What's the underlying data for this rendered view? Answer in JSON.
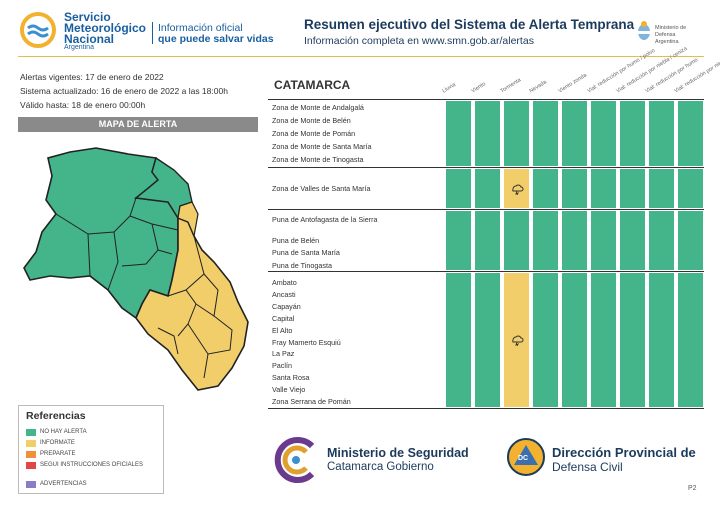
{
  "header": {
    "org_line1": "Servicio",
    "org_line2": "Meteorológico",
    "org_line3": "Nacional",
    "org_country": "Argentina",
    "slogan_line1": "Información oficial",
    "slogan_line2": "que puede salvar vidas",
    "title": "Resumen ejecutivo del Sistema de Alerta Temprana",
    "subtitle": "Información completa en www.smn.gob.ar/alertas",
    "ministry_line1": "Ministerio de Defensa",
    "ministry_line2": "Argentina"
  },
  "info": {
    "vigentes": "Alertas vigentes: 17 de enero de 2022",
    "actualizado": "Sistema actualizado: 16 de enero de 2022 a las 18:00h",
    "valido": "Válido hasta: 18 de enero 00:00h"
  },
  "map": {
    "title": "MAPA DE ALERTA"
  },
  "references": {
    "title": "Referencias",
    "items": [
      {
        "label": "NO HAY ALERTA",
        "color": "#44b48a"
      },
      {
        "label": "INFORMATE",
        "color": "#f2ce6b"
      },
      {
        "label": "PREPARATE",
        "color": "#f0903a"
      },
      {
        "label": "SEGUI INSTRUCCIONES OFICIALES",
        "color": "#e04848"
      },
      {
        "label": "ADVERTENCIAS",
        "color": "#8c7cc8"
      }
    ]
  },
  "table": {
    "province": "CATAMARCA",
    "columns": [
      "Lluvia",
      "Viento",
      "Tormenta",
      "Nevada",
      "Viento zonda",
      "Vial: reducción por humo / polvo",
      "Vial: reducción por niebla / ceniza",
      "Vial: reducción por humo",
      "Vial: reducción por niebla"
    ],
    "groups": [
      {
        "zones": [
          "Zona de Monte de Andalgalá",
          "Zona de Monte de Belén",
          "Zona de Monte de Pomán",
          "Zona de Monte de Santa María",
          "Zona de Monte de Tinogasta"
        ],
        "tormenta": "sin alerta"
      },
      {
        "zones": [
          "Zona de Valles de Santa María"
        ],
        "tormenta": "informate"
      },
      {
        "zones": [
          "Puna de Antofagasta de la Sierra",
          "Puna de Belén",
          "Puna de Santa María",
          "Puna de Tinogasta"
        ],
        "tormenta": "sin alerta"
      },
      {
        "zones": [
          "Ambato",
          "Ancasti",
          "Capayán",
          "Capital",
          "El Alto",
          "Fray Mamerto Esquiú",
          "La Paz",
          "Paclín",
          "Santa Rosa",
          "Valle Viejo",
          "Zona Serrana de Pomán"
        ],
        "tormenta": "informate"
      }
    ]
  },
  "footer": {
    "seg_title": "Ministerio de Seguridad",
    "seg_sub": "Catamarca Gobierno",
    "dc_badge": "DC",
    "dc_title": "Dirección Provincial de",
    "dc_sub": "Defensa Civil",
    "page": "P2"
  }
}
